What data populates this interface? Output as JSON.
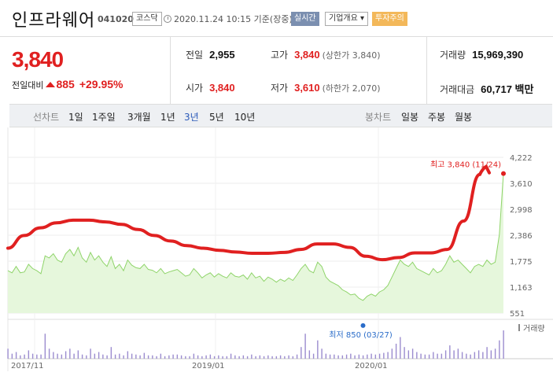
{
  "header": {
    "stock_name": "인프라웨어",
    "stock_code": "041020",
    "market": "코스닥",
    "timestamp": "2020.11.24 10:15 기준(장중)",
    "realtime_button": "실시간",
    "company_button": "기업개요 ▾",
    "warning_badge": "투자주의"
  },
  "quote": {
    "price": "3,840",
    "change_label": "전일대비",
    "change_amount": "885",
    "change_rate": "+29.95%",
    "prev_close_label": "전일",
    "prev_close": "2,955",
    "high_label": "고가",
    "high": "3,840",
    "high_sub": "(상한가 3,840)",
    "volume_label": "거래량",
    "volume": "15,969,390",
    "open_label": "시가",
    "open": "3,840",
    "low_label": "저가",
    "low": "3,610",
    "low_sub": "(하한가 2,070)",
    "amount_label": "거래대금",
    "amount": "60,717 백만"
  },
  "tabs": {
    "line_chart_label": "선차트",
    "periods": [
      "1일",
      "1주일",
      "3개월",
      "1년",
      "3년",
      "5년",
      "10년"
    ],
    "active_period": "3년",
    "candle_chart_label": "봉차트",
    "candles": [
      "일봉",
      "주봉",
      "월봉"
    ]
  },
  "colors": {
    "up": "#e02020",
    "active_tab": "#2a59b8",
    "area_line": "#8fd46a",
    "area_fill": "#e6f7dc",
    "volume_bar": "#9b8ccf",
    "annotation_red": "#e02020",
    "low_marker": "#2a6cc9"
  },
  "chart_data": {
    "type": "area",
    "ylim": [
      551,
      4222
    ],
    "y_ticks": [
      "4,222",
      "3,610",
      "2,998",
      "2,386",
      "1,775",
      "1,163",
      "551"
    ],
    "x_ticks": [
      "2017/11",
      "2019/01",
      "2020/01"
    ],
    "volume_label": "거래량",
    "max_annotation": "최고 3,840 (11/24)",
    "min_annotation": "최저 850 (03/27)",
    "x": [
      0,
      1,
      2,
      3,
      4,
      5,
      6,
      7,
      8,
      9,
      10,
      11,
      12,
      13,
      14,
      15,
      16,
      17,
      18,
      19,
      20,
      21,
      22,
      23,
      24,
      25,
      26,
      27,
      28,
      29,
      30,
      31,
      32,
      33,
      34,
      35,
      36,
      37,
      38,
      39,
      40,
      41,
      42,
      43,
      44,
      45,
      46,
      47,
      48,
      49,
      50,
      51,
      52,
      53,
      54,
      55,
      56,
      57,
      58,
      59,
      60,
      61,
      62,
      63,
      64,
      65,
      66,
      67,
      68,
      69,
      70,
      71,
      72,
      73,
      74,
      75,
      76,
      77,
      78,
      79,
      80,
      81,
      82,
      83,
      84,
      85,
      86,
      87,
      88,
      89,
      90,
      91,
      92,
      93,
      94,
      95,
      96,
      97,
      98,
      99,
      100,
      101,
      102,
      103,
      104,
      105,
      106,
      107,
      108,
      109,
      110,
      111,
      112,
      113,
      114,
      115,
      116,
      117,
      118,
      119,
      120
    ],
    "values": [
      1550,
      1500,
      1650,
      1500,
      1520,
      1700,
      1600,
      1550,
      1480,
      1900,
      1850,
      1950,
      1800,
      1750,
      1950,
      2050,
      1900,
      2100,
      1850,
      1750,
      1980,
      1800,
      1900,
      1750,
      1650,
      1880,
      1600,
      1700,
      1550,
      1800,
      1680,
      1620,
      1600,
      1700,
      1580,
      1560,
      1500,
      1600,
      1480,
      1520,
      1550,
      1580,
      1500,
      1420,
      1450,
      1600,
      1500,
      1380,
      1450,
      1500,
      1400,
      1480,
      1420,
      1380,
      1500,
      1420,
      1400,
      1450,
      1350,
      1500,
      1380,
      1420,
      1300,
      1400,
      1350,
      1280,
      1350,
      1300,
      1380,
      1320,
      1450,
      1600,
      1700,
      1550,
      1500,
      1750,
      1650,
      1400,
      1300,
      1250,
      1200,
      1100,
      1050,
      980,
      1000,
      900,
      850,
      950,
      1000,
      950,
      1050,
      1100,
      1200,
      1400,
      1600,
      1800,
      1700,
      1650,
      1750,
      1600,
      1550,
      1500,
      1450,
      1600,
      1500,
      1550,
      1700,
      1900,
      1750,
      1800,
      1700,
      1600,
      1500,
      1650,
      1700,
      1650,
      1800,
      1700,
      1750,
      2400,
      3840
    ],
    "trend_annotation": {
      "values": [
        2080,
        2380,
        2560,
        2680,
        2740,
        2740,
        2700,
        2640,
        2520,
        2380,
        2250,
        2140,
        2080,
        2030,
        1990,
        1960,
        1960,
        1980,
        2050,
        2180,
        2180,
        2100,
        1890,
        1810,
        1860,
        1970,
        1970,
        2050,
        2720,
        3820
      ]
    },
    "volume": [
      12,
      6,
      8,
      4,
      5,
      10,
      6,
      5,
      5,
      30,
      12,
      8,
      6,
      5,
      9,
      12,
      6,
      10,
      5,
      4,
      12,
      6,
      8,
      5,
      4,
      14,
      5,
      6,
      4,
      9,
      6,
      5,
      4,
      7,
      4,
      4,
      3,
      6,
      3,
      4,
      5,
      5,
      4,
      3,
      3,
      6,
      4,
      3,
      4,
      5,
      3,
      4,
      3,
      3,
      6,
      4,
      3,
      4,
      3,
      5,
      3,
      4,
      3,
      4,
      3,
      3,
      4,
      3,
      4,
      3,
      5,
      14,
      30,
      10,
      6,
      22,
      12,
      6,
      5,
      5,
      4,
      4,
      5,
      6,
      4,
      5,
      4,
      5,
      6,
      5,
      6,
      7,
      8,
      12,
      18,
      26,
      14,
      10,
      12,
      8,
      6,
      5,
      5,
      8,
      6,
      6,
      10,
      16,
      10,
      12,
      8,
      6,
      5,
      8,
      10,
      8,
      14,
      10,
      12,
      22,
      34
    ]
  }
}
